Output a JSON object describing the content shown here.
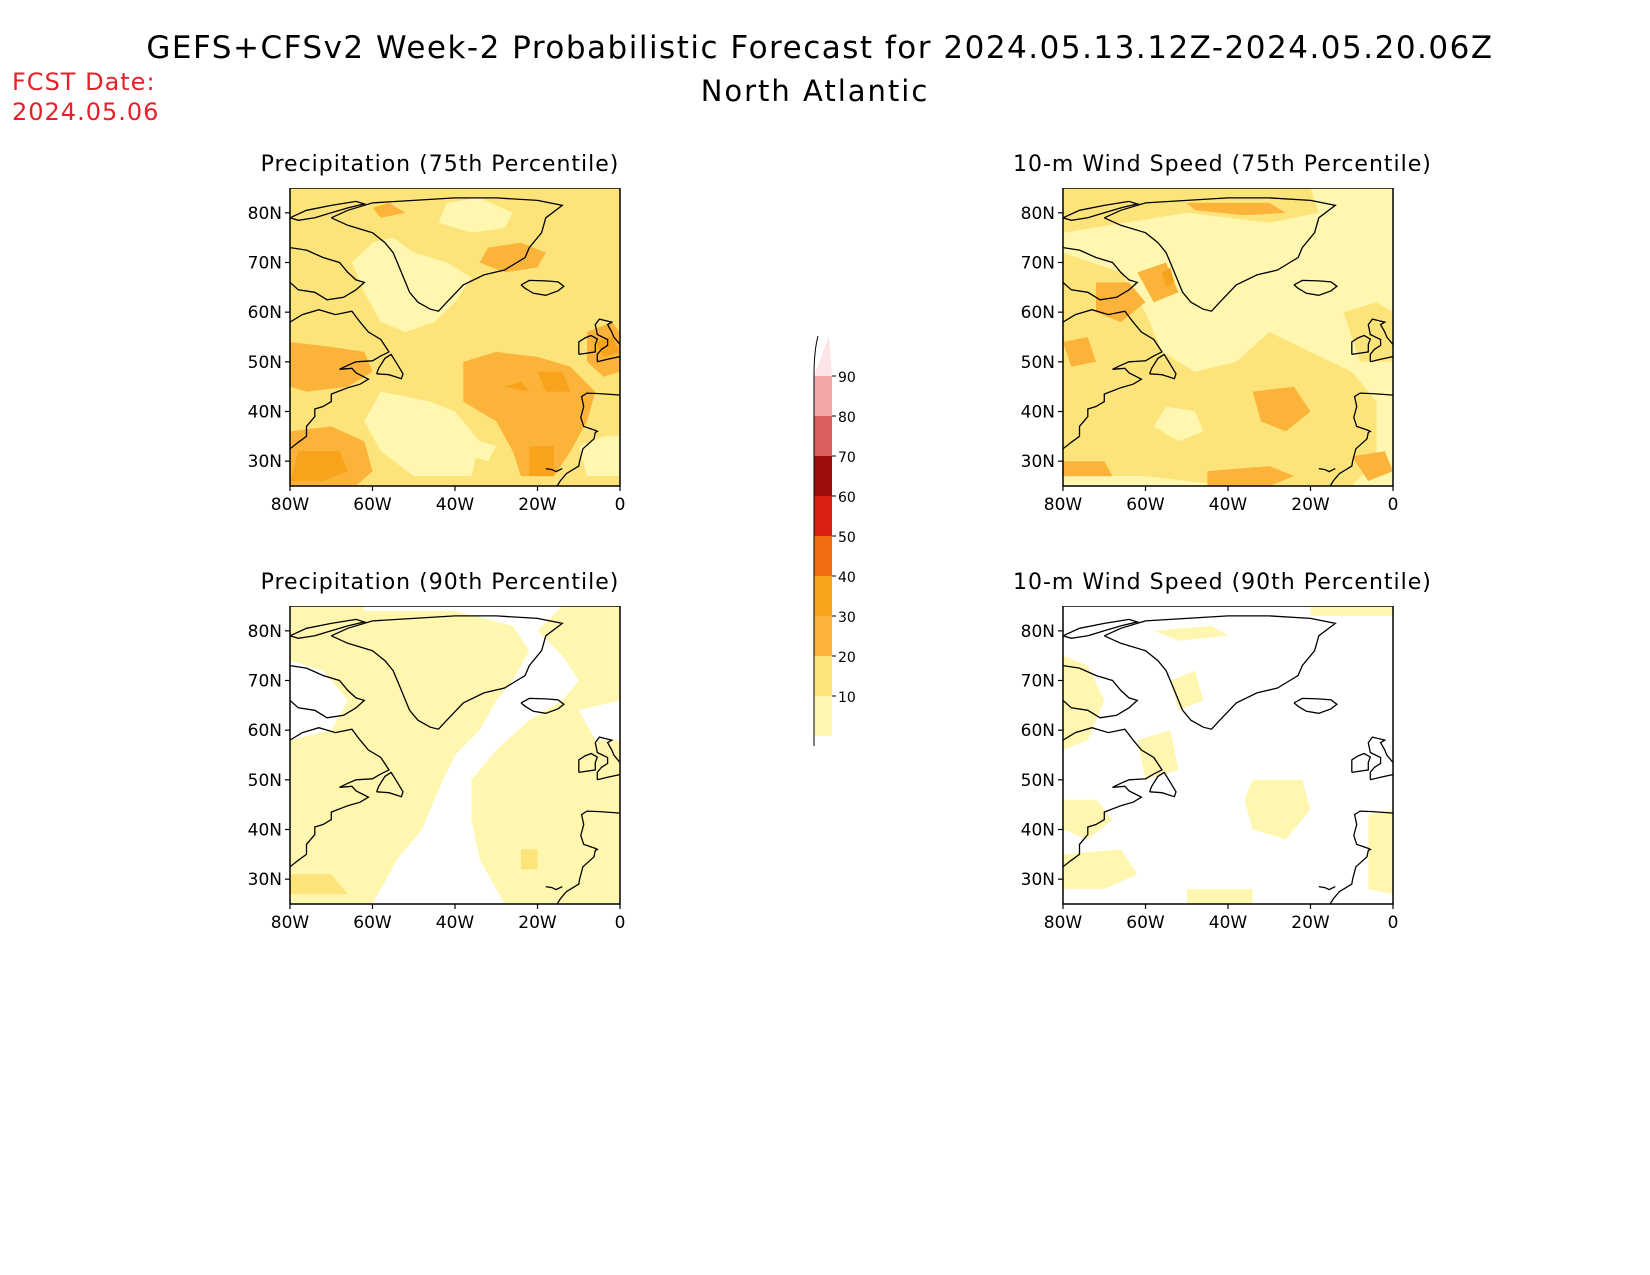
{
  "header": {
    "title": "GEFS+CFSv2 Week-2 Probabilistic Forecast for 2024.05.13.12Z-2024.05.20.06Z",
    "subtitle": "North Atlantic",
    "fcst_label": "FCST Date:",
    "fcst_date": "2024.05.06"
  },
  "colors": {
    "c10": "#fff7b0",
    "c20": "#fde47a",
    "c30": "#fbb33a",
    "c40": "#f9a21b",
    "c50": "#f26b0f",
    "c60": "#d82013",
    "c70": "#9e0f0b",
    "c80": "#d85f5c",
    "c90": "#f4a6a8",
    "c100": "#fde4e6"
  },
  "axes": {
    "lat_ticks": [
      "80N",
      "70N",
      "60N",
      "50N",
      "40N",
      "30N"
    ],
    "lon_ticks": [
      "80W",
      "60W",
      "40W",
      "20W",
      "0"
    ]
  },
  "legend": {
    "labels": [
      "90",
      "80",
      "70",
      "60",
      "50",
      "40",
      "30",
      "20",
      "10"
    ]
  },
  "panels": [
    {
      "id": "precip75",
      "title": "Precipitation (75th Percentile)"
    },
    {
      "id": "wind75",
      "title": "10-m Wind Speed (75th Percentile)"
    },
    {
      "id": "precip90",
      "title": "Precipitation (90th Percentile)"
    },
    {
      "id": "wind90",
      "title": "10-m Wind Speed (90th Percentile)"
    }
  ]
}
